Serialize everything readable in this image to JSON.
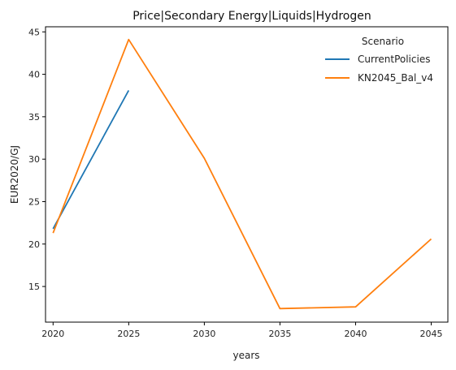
{
  "chart_data": {
    "type": "line",
    "title": "Price|Secondary Energy|Liquids|Hydrogen",
    "xlabel": "years",
    "ylabel": "EUR2020/GJ",
    "x": [
      2020,
      2025,
      2030,
      2035,
      2040,
      2045
    ],
    "xticks": [
      "2020",
      "2025",
      "2030",
      "2035",
      "2040",
      "2045"
    ],
    "yticks": [
      "15",
      "20",
      "25",
      "30",
      "35",
      "40",
      "45"
    ],
    "xlim": [
      2019.5,
      2046.1
    ],
    "ylim": [
      10.8,
      45.6
    ],
    "grid": false,
    "legend": {
      "title": "Scenario",
      "placement": "top-right"
    },
    "series": [
      {
        "name": "CurrentPolicies",
        "color": "#1f77b4",
        "x": [
          2020,
          2025
        ],
        "values": [
          21.8,
          38.1
        ]
      },
      {
        "name": "KN2045_Bal_v4",
        "color": "#ff7f0e",
        "x": [
          2020,
          2025,
          2030,
          2035,
          2040,
          2045
        ],
        "values": [
          21.3,
          44.1,
          30.1,
          12.4,
          12.6,
          20.6
        ]
      }
    ]
  }
}
